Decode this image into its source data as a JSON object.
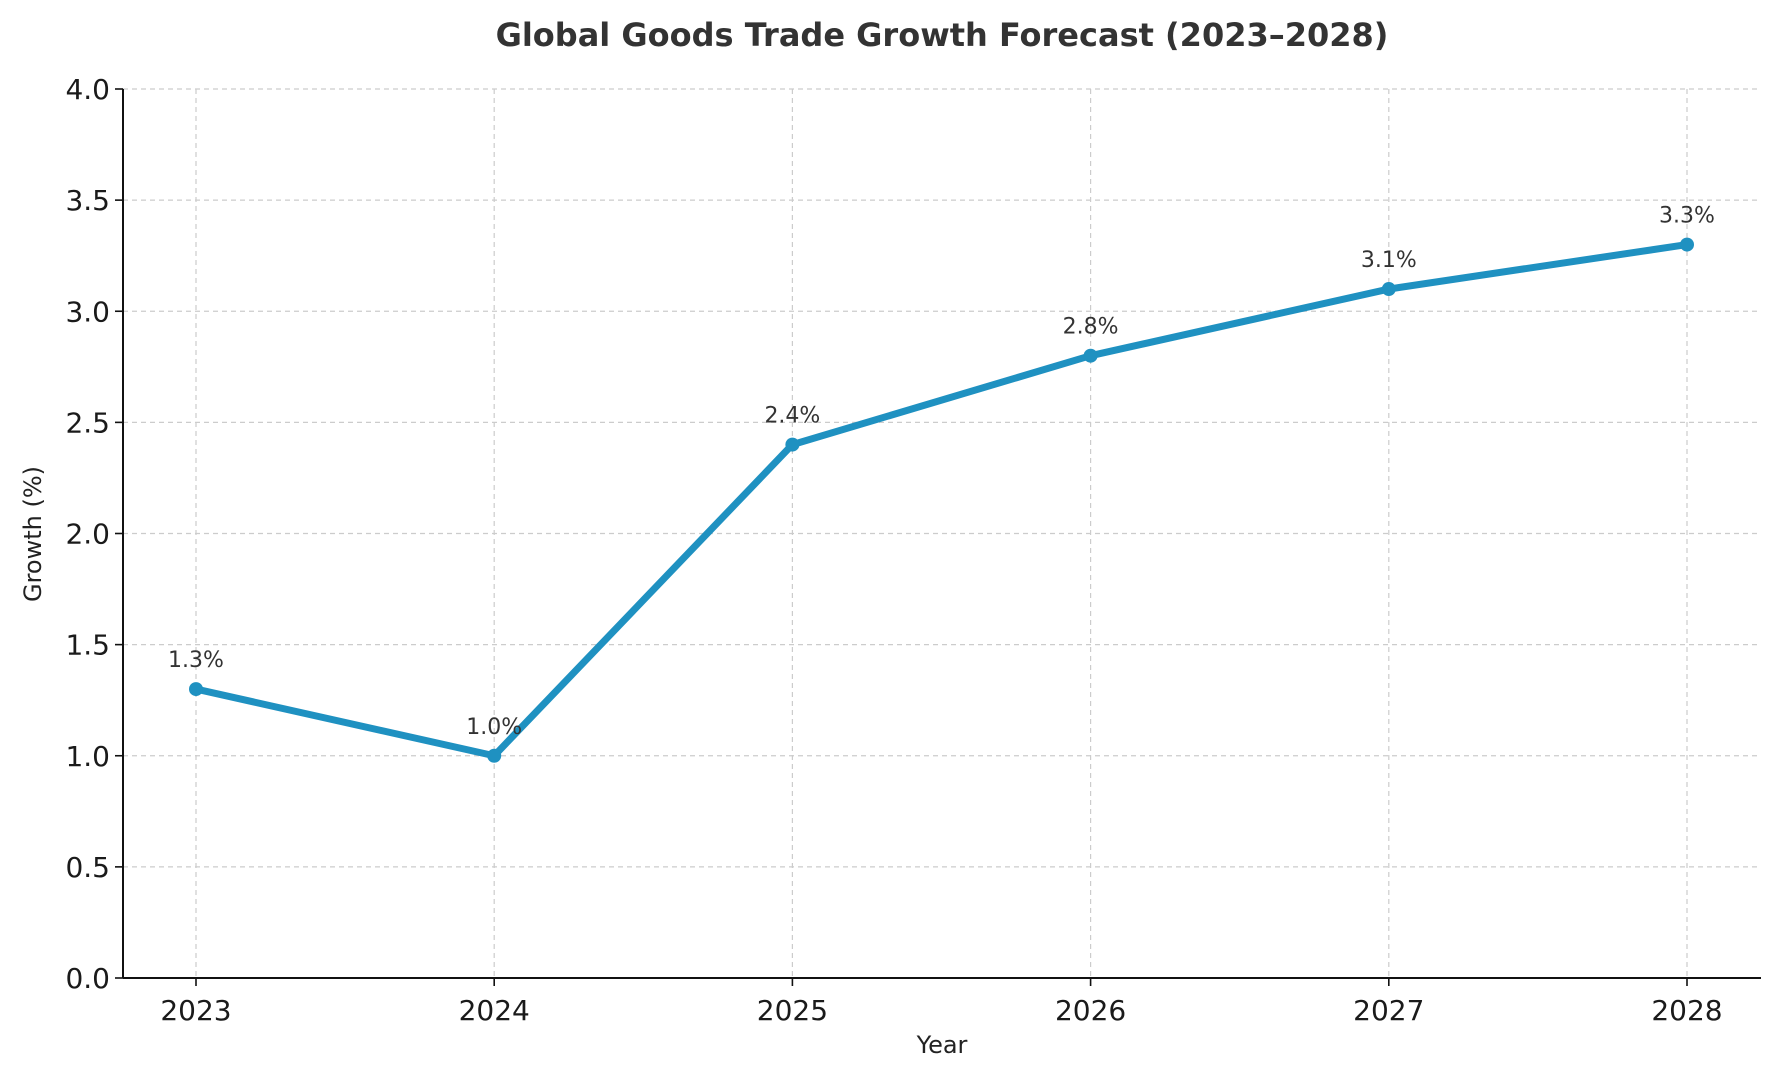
{
  "chart_data": {
    "type": "line",
    "title": "Global Goods Trade Growth Forecast (2023–2028)",
    "xlabel": "Year",
    "ylabel": "Growth (%)",
    "categories": [
      "2023",
      "2024",
      "2025",
      "2026",
      "2027",
      "2028"
    ],
    "values": [
      1.3,
      1.0,
      2.4,
      2.8,
      3.1,
      3.3
    ],
    "data_labels": [
      "1.3%",
      "1.0%",
      "2.4%",
      "2.8%",
      "3.1%",
      "3.3%"
    ],
    "ylim": [
      0,
      4.0
    ],
    "yticks": [
      "0.0",
      "0.5",
      "1.0",
      "1.5",
      "2.0",
      "2.5",
      "3.0",
      "3.5",
      "4.0"
    ],
    "grid": true,
    "marker": "circle",
    "color": "#1f91c1"
  }
}
